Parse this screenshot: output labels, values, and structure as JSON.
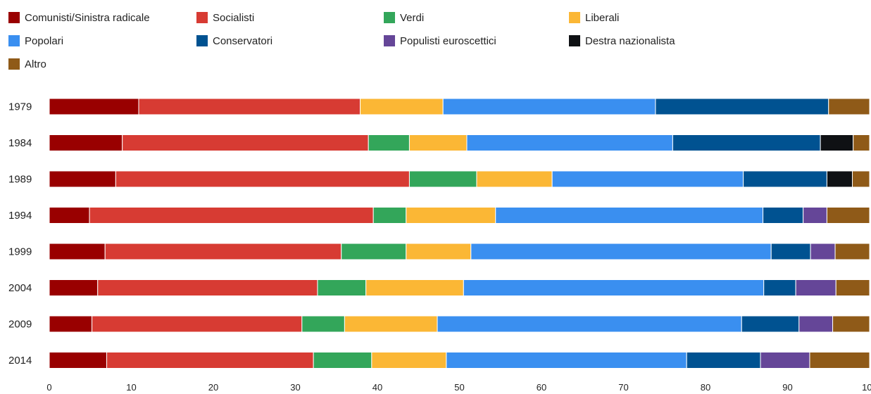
{
  "chart_data": {
    "type": "bar",
    "orientation": "horizontal",
    "stacked": true,
    "categories": [
      "1979",
      "1984",
      "1989",
      "1994",
      "1999",
      "2004",
      "2009",
      "2014"
    ],
    "series": [
      {
        "name": "Comunisti/Sinistra radicale",
        "color": "#990000",
        "values": [
          10.9,
          8.9,
          8.1,
          4.9,
          6.8,
          5.9,
          5.2,
          7.0
        ]
      },
      {
        "name": "Socialisti",
        "color": "#d73b33",
        "values": [
          27.0,
          30.0,
          35.8,
          34.6,
          28.8,
          26.8,
          25.6,
          25.2
        ]
      },
      {
        "name": "Verdi",
        "color": "#33a65a",
        "values": [
          0.0,
          5.0,
          8.2,
          4.0,
          7.9,
          5.9,
          5.2,
          7.1
        ]
      },
      {
        "name": "Liberali",
        "color": "#fbb735",
        "values": [
          10.1,
          7.0,
          9.2,
          10.9,
          7.9,
          11.9,
          11.3,
          9.1
        ]
      },
      {
        "name": "Popolari",
        "color": "#3a8ff0",
        "values": [
          25.9,
          25.1,
          23.3,
          32.6,
          36.6,
          36.6,
          37.1,
          29.3
        ]
      },
      {
        "name": "Conservatori",
        "color": "#005291",
        "values": [
          21.1,
          18.0,
          10.2,
          4.9,
          4.8,
          3.9,
          7.0,
          9.0
        ]
      },
      {
        "name": "Populisti euroscettici",
        "color": "#654698",
        "values": [
          0.0,
          0.0,
          0.0,
          2.9,
          3.0,
          4.9,
          4.1,
          6.0
        ]
      },
      {
        "name": "Destra nazionalista",
        "color": "#0f1114",
        "values": [
          0.0,
          4.0,
          3.1,
          0.0,
          0.0,
          0.0,
          0.0,
          0.0
        ]
      },
      {
        "name": "Altro",
        "color": "#8f5a18",
        "values": [
          5.0,
          2.0,
          2.1,
          5.2,
          4.2,
          4.1,
          4.5,
          7.3
        ]
      }
    ],
    "xlim": [
      0,
      100
    ],
    "xticks": [
      "0",
      "10",
      "20",
      "30",
      "40",
      "50",
      "60",
      "70",
      "80",
      "90",
      "100"
    ],
    "legend_position": "top",
    "grid": false,
    "title": "",
    "xlabel": "",
    "ylabel": ""
  }
}
